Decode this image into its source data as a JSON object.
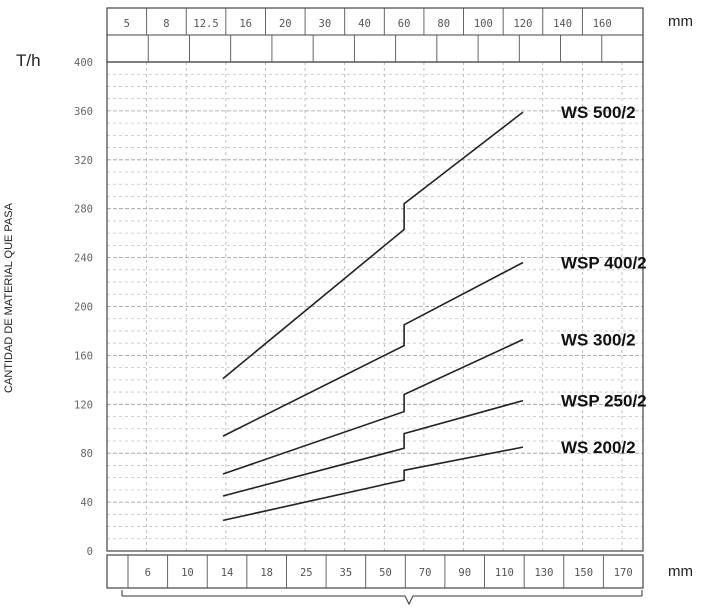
{
  "chart_data": {
    "type": "line",
    "y_unit": "T/h",
    "y_title": "CANTIDAD DE MATERIAL QUE PASA",
    "y_ticks": [
      0,
      40,
      80,
      120,
      160,
      200,
      240,
      280,
      320,
      360,
      400
    ],
    "ylim": [
      0,
      400
    ],
    "top_scale": {
      "unit": "mm",
      "labels": [
        "5",
        "8",
        "12.5",
        "16",
        "20",
        "30",
        "40",
        "60",
        "80",
        "100",
        "120",
        "140",
        "160"
      ]
    },
    "bottom_scale": {
      "unit": "mm",
      "labels": [
        "6",
        "10",
        "14",
        "18",
        "25",
        "35",
        "50",
        "70",
        "90",
        "110",
        "130",
        "150",
        "170"
      ]
    },
    "series": [
      {
        "name": "WS 500/2",
        "color": "#222222",
        "points": [
          [
            14,
            141
          ],
          [
            60,
            263
          ],
          [
            60,
            284
          ],
          [
            120,
            359
          ]
        ]
      },
      {
        "name": "WSP 400/2",
        "color": "#222222",
        "points": [
          [
            14,
            94
          ],
          [
            60,
            168
          ],
          [
            60,
            185
          ],
          [
            120,
            236
          ]
        ]
      },
      {
        "name": "WS 300/2",
        "color": "#222222",
        "points": [
          [
            14,
            63
          ],
          [
            60,
            114
          ],
          [
            60,
            128
          ],
          [
            120,
            173
          ]
        ]
      },
      {
        "name": "WSP 250/2",
        "color": "#222222",
        "points": [
          [
            14,
            45
          ],
          [
            60,
            84
          ],
          [
            60,
            96
          ],
          [
            120,
            123
          ]
        ]
      },
      {
        "name": "WS 200/2",
        "color": "#222222",
        "points": [
          [
            14,
            25
          ],
          [
            60,
            58
          ],
          [
            60,
            66
          ],
          [
            120,
            85
          ]
        ]
      }
    ]
  }
}
